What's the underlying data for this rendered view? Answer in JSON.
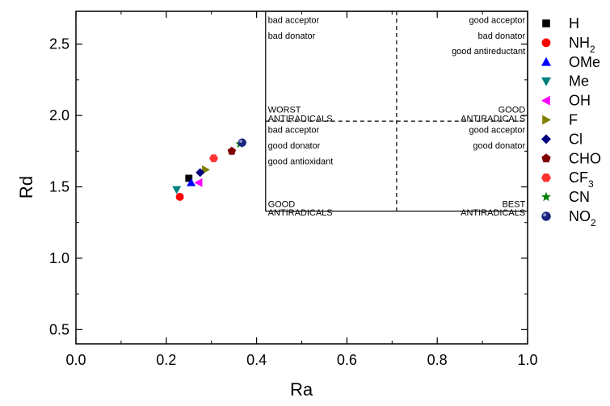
{
  "chart_data": {
    "type": "scatter",
    "xlabel": "Ra",
    "ylabel": "Rd",
    "xlim": [
      0.0,
      1.0
    ],
    "ylim": [
      0.4,
      2.73
    ],
    "x_ticks": [
      "0.0",
      "0.2",
      "0.4",
      "0.6",
      "0.8",
      "1.0"
    ],
    "y_ticks": [
      "0.5",
      "1.0",
      "1.5",
      "2.0",
      "2.5"
    ],
    "x_tick_values": [
      0.0,
      0.2,
      0.4,
      0.6,
      0.8,
      1.0
    ],
    "y_tick_values": [
      0.5,
      1.0,
      1.5,
      2.0,
      2.5
    ],
    "grid": false,
    "legend_position": "right",
    "series": [
      {
        "name": "H",
        "sub": "",
        "marker": "square",
        "color": "#000000",
        "x": 0.25,
        "y": 1.56
      },
      {
        "name": "NH",
        "sub": "2",
        "marker": "circle",
        "color": "#ff0000",
        "x": 0.23,
        "y": 1.43
      },
      {
        "name": "OMe",
        "sub": "",
        "marker": "triangle-up",
        "color": "#0000ff",
        "x": 0.255,
        "y": 1.53
      },
      {
        "name": "Me",
        "sub": "",
        "marker": "triangle-down",
        "color": "#008080",
        "x": 0.223,
        "y": 1.48
      },
      {
        "name": "OH",
        "sub": "",
        "marker": "triangle-left",
        "color": "#ff00ff",
        "x": 0.272,
        "y": 1.53
      },
      {
        "name": "F",
        "sub": "",
        "marker": "triangle-right",
        "color": "#808000",
        "x": 0.287,
        "y": 1.62
      },
      {
        "name": "Cl",
        "sub": "",
        "marker": "diamond",
        "color": "#000080",
        "x": 0.275,
        "y": 1.6
      },
      {
        "name": "CHO",
        "sub": "",
        "marker": "pentagon",
        "color": "#800000",
        "x": 0.345,
        "y": 1.75
      },
      {
        "name": "CF",
        "sub": "3",
        "marker": "hexagon",
        "color": "#ff3333",
        "x": 0.305,
        "y": 1.7
      },
      {
        "name": "CN",
        "sub": "",
        "marker": "star",
        "color": "#008000",
        "x": 0.363,
        "y": 1.8
      },
      {
        "name": "NO",
        "sub": "2",
        "marker": "sphere",
        "color": "#1a237e",
        "x": 0.368,
        "y": 1.81
      }
    ],
    "quadrant_box": {
      "x": [
        0.42,
        1.0
      ],
      "y": [
        1.33,
        2.73
      ],
      "divider_x": 0.71,
      "divider_y": 1.96
    },
    "annotations": [
      {
        "id": "q-tl-1",
        "text": "bad acceptor",
        "x": 0.425,
        "y": 2.7,
        "align": "start"
      },
      {
        "id": "q-tl-2",
        "text": "bad donator",
        "x": 0.425,
        "y": 2.59,
        "align": "start"
      },
      {
        "id": "q-tl-3",
        "text": "WORST",
        "x": 0.425,
        "y": 2.07,
        "align": "start"
      },
      {
        "id": "q-tl-4",
        "text": "ANTIRADICALS",
        "x": 0.425,
        "y": 2.01,
        "align": "start"
      },
      {
        "id": "q-tr-1",
        "text": "good acceptor",
        "x": 0.995,
        "y": 2.7,
        "align": "end"
      },
      {
        "id": "q-tr-2",
        "text": "bad donator",
        "x": 0.995,
        "y": 2.59,
        "align": "end"
      },
      {
        "id": "q-tr-3",
        "text": "good antireductant",
        "x": 0.995,
        "y": 2.48,
        "align": "end"
      },
      {
        "id": "q-tr-4",
        "text": "GOOD",
        "x": 0.995,
        "y": 2.07,
        "align": "end"
      },
      {
        "id": "q-tr-5",
        "text": "ANTIRADICALS",
        "x": 0.995,
        "y": 2.01,
        "align": "end"
      },
      {
        "id": "q-bl-1",
        "text": "bad acceptor",
        "x": 0.425,
        "y": 1.93,
        "align": "start"
      },
      {
        "id": "q-bl-2",
        "text": "good donator",
        "x": 0.425,
        "y": 1.82,
        "align": "start"
      },
      {
        "id": "q-bl-3",
        "text": "good antioxidant",
        "x": 0.425,
        "y": 1.71,
        "align": "start"
      },
      {
        "id": "q-bl-4",
        "text": "GOOD",
        "x": 0.425,
        "y": 1.41,
        "align": "start"
      },
      {
        "id": "q-bl-5",
        "text": "ANTIRADICALS",
        "x": 0.425,
        "y": 1.35,
        "align": "start"
      },
      {
        "id": "q-br-1",
        "text": "good acceptor",
        "x": 0.995,
        "y": 1.93,
        "align": "end"
      },
      {
        "id": "q-br-2",
        "text": "good donator",
        "x": 0.995,
        "y": 1.82,
        "align": "end"
      },
      {
        "id": "q-br-3",
        "text": "BEST",
        "x": 0.995,
        "y": 1.41,
        "align": "end"
      },
      {
        "id": "q-br-4",
        "text": "ANTIRADICALS",
        "x": 0.995,
        "y": 1.35,
        "align": "end"
      }
    ]
  }
}
